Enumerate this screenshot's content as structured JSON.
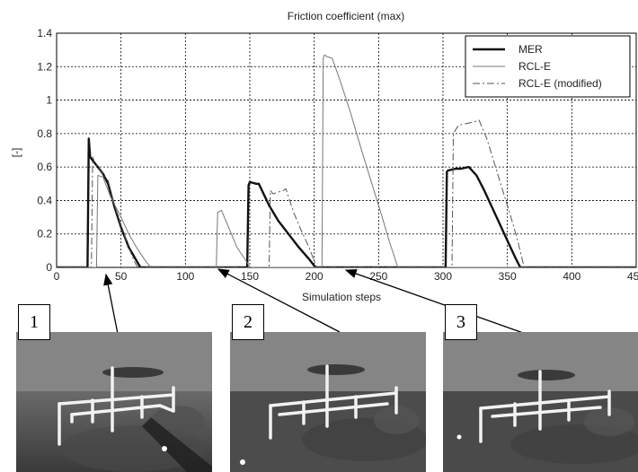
{
  "chart_data": {
    "type": "line",
    "title": "Friction coefficient (max)",
    "xlabel": "Simulation steps",
    "ylabel": "[-]",
    "xlim": [
      0,
      450
    ],
    "ylim": [
      0,
      1.4
    ],
    "xticks": [
      0,
      50,
      100,
      150,
      200,
      250,
      300,
      350,
      400,
      450
    ],
    "yticks": [
      0,
      0.2,
      0.4,
      0.6,
      0.8,
      1,
      1.2,
      1.4
    ],
    "grid": true,
    "legend_position": "top-right",
    "series": [
      {
        "name": "MER",
        "style": "solid-thick",
        "x": [
          0,
          24,
          25,
          26,
          28,
          32,
          36,
          40,
          45,
          50,
          56,
          62,
          65,
          148,
          149,
          150,
          155,
          157,
          165,
          172,
          180,
          188,
          196,
          201,
          302,
          303,
          304,
          310,
          314,
          320,
          326,
          332,
          338,
          344,
          350,
          356,
          360,
          450
        ],
        "y": [
          0,
          0,
          0.77,
          0.66,
          0.64,
          0.6,
          0.56,
          0.5,
          0.36,
          0.24,
          0.12,
          0.04,
          0,
          0,
          0.49,
          0.51,
          0.5,
          0.5,
          0.37,
          0.28,
          0.2,
          0.12,
          0.05,
          0,
          0,
          0.57,
          0.58,
          0.59,
          0.59,
          0.6,
          0.55,
          0.46,
          0.36,
          0.26,
          0.16,
          0.06,
          0,
          0
        ]
      },
      {
        "name": "RCL-E",
        "style": "solid-thin",
        "x": [
          0,
          31,
          32,
          36,
          42,
          50,
          56,
          62,
          68,
          73,
          124,
          125,
          128,
          133,
          140,
          147,
          150,
          206,
          207,
          208,
          210,
          214,
          220,
          228,
          236,
          244,
          252,
          259,
          265,
          450
        ],
        "y": [
          0,
          0,
          0.55,
          0.54,
          0.42,
          0.3,
          0.2,
          0.12,
          0.05,
          0,
          0,
          0.33,
          0.34,
          0.25,
          0.12,
          0.04,
          0,
          0,
          1.25,
          1.27,
          1.26,
          1.25,
          1.12,
          0.93,
          0.72,
          0.52,
          0.32,
          0.14,
          0,
          0
        ]
      },
      {
        "name": "RCL-E (modified)",
        "style": "dash-dot",
        "x": [
          0,
          27,
          28,
          30,
          34,
          40,
          45,
          50,
          56,
          60,
          63,
          165,
          166,
          168,
          176,
          178,
          184,
          190,
          196,
          202,
          307,
          308,
          312,
          318,
          324,
          328,
          334,
          340,
          346,
          352,
          358,
          363,
          450
        ],
        "y": [
          0,
          0,
          0.66,
          0.62,
          0.58,
          0.52,
          0.37,
          0.25,
          0.12,
          0.04,
          0,
          0,
          0.46,
          0.44,
          0.46,
          0.47,
          0.33,
          0.22,
          0.12,
          0,
          0,
          0.8,
          0.85,
          0.86,
          0.87,
          0.88,
          0.77,
          0.62,
          0.47,
          0.32,
          0.16,
          0,
          0
        ]
      }
    ]
  },
  "annotations": [
    {
      "label": "1",
      "x": 31
    },
    {
      "label": "2",
      "x": 120
    },
    {
      "label": "3",
      "x": 222
    }
  ]
}
